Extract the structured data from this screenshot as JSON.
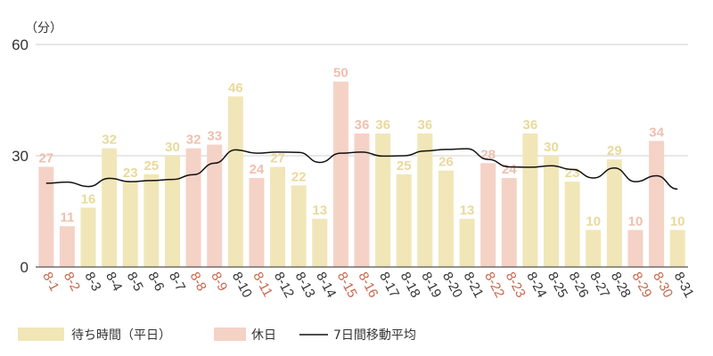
{
  "chart_data": {
    "type": "bar",
    "unit_label": "（分）",
    "y_ticks": [
      0,
      30,
      60
    ],
    "ylim": [
      0,
      60
    ],
    "grid": true,
    "categories": [
      "8-1",
      "8-2",
      "8-3",
      "8-4",
      "8-5",
      "8-6",
      "8-7",
      "8-8",
      "8-9",
      "8-10",
      "8-11",
      "8-12",
      "8-13",
      "8-14",
      "8-15",
      "8-16",
      "8-17",
      "8-18",
      "8-19",
      "8-20",
      "8-21",
      "8-22",
      "8-23",
      "8-24",
      "8-25",
      "8-26",
      "8-27",
      "8-28",
      "8-29",
      "8-30",
      "8-31"
    ],
    "values": [
      27,
      11,
      16,
      32,
      23,
      25,
      30,
      32,
      33,
      46,
      24,
      27,
      22,
      13,
      50,
      36,
      36,
      25,
      36,
      26,
      13,
      28,
      24,
      36,
      30,
      23,
      10,
      29,
      10,
      34,
      10
    ],
    "is_holiday": [
      true,
      true,
      false,
      false,
      false,
      false,
      false,
      true,
      true,
      false,
      true,
      false,
      false,
      false,
      true,
      true,
      false,
      false,
      false,
      false,
      false,
      true,
      true,
      false,
      false,
      false,
      false,
      false,
      true,
      true,
      false
    ],
    "moving_average": [
      22.6,
      22.9,
      21.7,
      23.9,
      23.0,
      23.3,
      23.6,
      24.9,
      28.0,
      31.6,
      30.7,
      31.0,
      30.9,
      28.2,
      30.7,
      31.0,
      29.9,
      30.0,
      31.3,
      31.7,
      31.9,
      29.0,
      27.0,
      26.9,
      27.3,
      26.3,
      24.0,
      26.7,
      23.0,
      24.6,
      21.0
    ],
    "series": [
      {
        "name": "待ち時間（平日）",
        "color": "#F1E6B7"
      },
      {
        "name": "休日",
        "color": "#F5D2C6"
      },
      {
        "name": "7日間移動平均",
        "color": "#111111"
      }
    ],
    "label_colors": {
      "weekday_value": "#E9D99A",
      "holiday_value": "#F0BFAE",
      "weekday_x": "#333333",
      "holiday_x": "#C8664A"
    },
    "legend_position": "bottom-left"
  }
}
